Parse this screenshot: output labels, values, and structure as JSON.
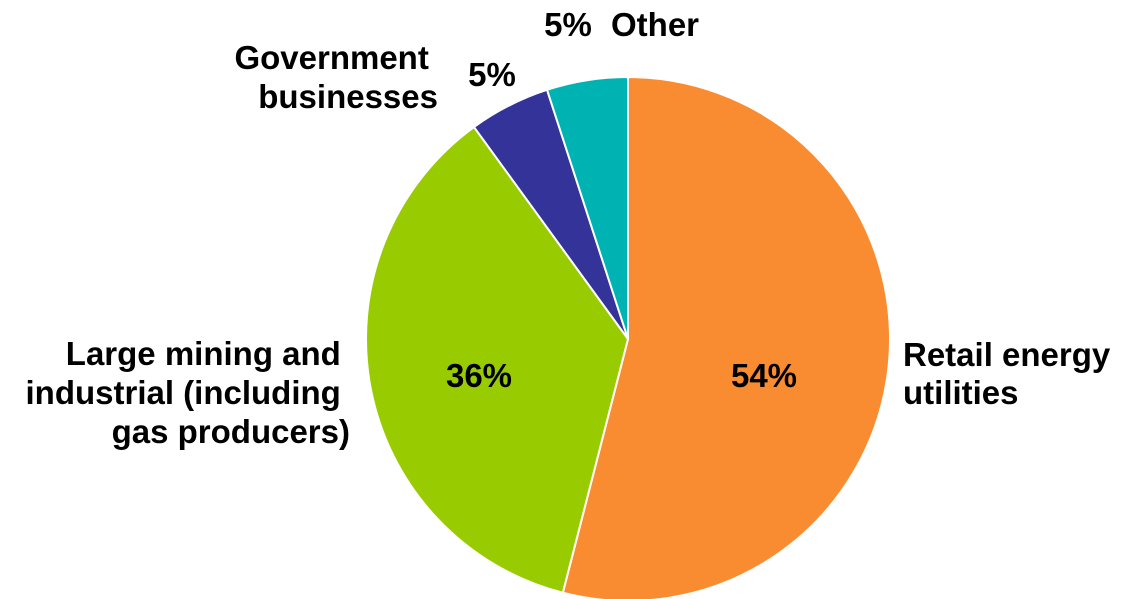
{
  "chart_data": {
    "type": "pie",
    "slices": [
      {
        "name": "Retail energy utilities",
        "label_lines": [
          "Retail energy",
          "utilities"
        ],
        "value": 54,
        "value_label": "54%",
        "color": "#f98c30"
      },
      {
        "name": "Large mining and industrial (including gas producers)",
        "label_lines": [
          "Large mining and",
          "industrial (including",
          "gas producers)"
        ],
        "value": 36,
        "value_label": "36%",
        "color": "#99cc00"
      },
      {
        "name": "Government businesses",
        "label_lines": [
          "Government",
          "businesses"
        ],
        "value": 5,
        "value_label": "5%",
        "color": "#333399"
      },
      {
        "name": "Other",
        "label_lines": [
          "Other"
        ],
        "value": 5,
        "value_label": "5%",
        "color": "#00b3b3"
      }
    ],
    "start": "12 o'clock",
    "direction": "clockwise"
  }
}
